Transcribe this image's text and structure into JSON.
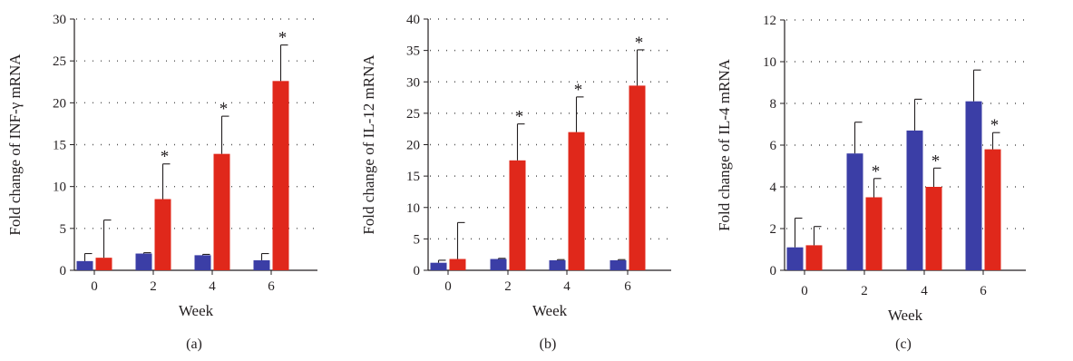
{
  "colors": {
    "series_a": "#3b3ea6",
    "series_b": "#e0281b",
    "axis": "#231f20"
  },
  "chart_data": [
    {
      "type": "bar",
      "panel_label": "(a)",
      "xlabel": "Week",
      "ylabel": "Fold change of INF-γ mRNA",
      "categories": [
        "0",
        "2",
        "4",
        "6"
      ],
      "ylim": [
        0,
        30
      ],
      "yticks": [
        "0",
        "5",
        "10",
        "15",
        "20",
        "25",
        "30"
      ],
      "grid": true,
      "series": [
        {
          "values": [
            1.1,
            2.0,
            1.8,
            1.2
          ],
          "errors": [
            0.9,
            0.1,
            0.1,
            0.8
          ],
          "markers": [
            "",
            "",
            "",
            ""
          ]
        },
        {
          "values": [
            1.5,
            8.5,
            13.9,
            22.6
          ],
          "errors": [
            4.5,
            4.2,
            4.5,
            4.3
          ],
          "markers": [
            "",
            "*",
            "*",
            "*"
          ]
        }
      ]
    },
    {
      "type": "bar",
      "panel_label": "(b)",
      "xlabel": "Week",
      "ylabel": "Fold change of IL-12 mRNA",
      "categories": [
        "0",
        "2",
        "4",
        "6"
      ],
      "ylim": [
        0,
        40
      ],
      "yticks": [
        "0",
        "5",
        "10",
        "15",
        "20",
        "25",
        "30",
        "35",
        "40"
      ],
      "grid": true,
      "series": [
        {
          "values": [
            1.2,
            1.8,
            1.6,
            1.6
          ],
          "errors": [
            0.4,
            0.1,
            0.1,
            0.1
          ],
          "markers": [
            "",
            "",
            "",
            ""
          ]
        },
        {
          "values": [
            1.8,
            17.5,
            22.0,
            29.4
          ],
          "errors": [
            5.8,
            5.8,
            5.6,
            5.7
          ],
          "markers": [
            "",
            "*",
            "*",
            "*"
          ]
        }
      ]
    },
    {
      "type": "bar",
      "panel_label": "(c)",
      "xlabel": "Week",
      "ylabel": "Fold change of IL-4 mRNA",
      "categories": [
        "0",
        "2",
        "4",
        "6"
      ],
      "ylim": [
        0,
        12
      ],
      "yticks": [
        "0",
        "2",
        "4",
        "6",
        "8",
        "10",
        "12"
      ],
      "grid": true,
      "series": [
        {
          "values": [
            1.1,
            5.6,
            6.7,
            8.1
          ],
          "errors": [
            1.4,
            1.5,
            1.5,
            1.5
          ],
          "markers": [
            "",
            "",
            "",
            ""
          ]
        },
        {
          "values": [
            1.2,
            3.5,
            4.0,
            5.8
          ],
          "errors": [
            0.9,
            0.9,
            0.9,
            0.8
          ],
          "markers": [
            "",
            "*",
            "*",
            "*"
          ]
        }
      ]
    }
  ]
}
